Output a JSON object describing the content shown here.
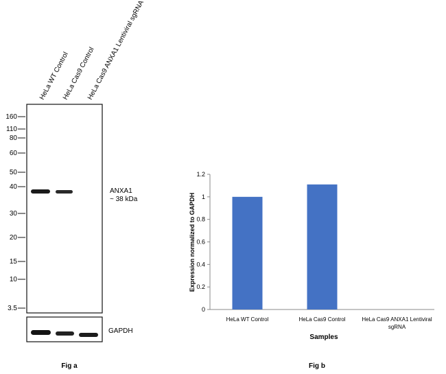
{
  "figure_a": {
    "lane_labels": [
      "HeLa WT Control",
      "HeLa Cas9 Control",
      "HeLa Cas9 ANXA1 Lentiviral sgRNA"
    ],
    "mw_markers": [
      "160",
      "110",
      "80",
      "60",
      "50",
      "40",
      "30",
      "20",
      "15",
      "10",
      "3.5"
    ],
    "target_label": "ANXA1",
    "target_size": "~ 38 kDa",
    "loading_control_label": "GAPDH",
    "caption": "Fig a"
  },
  "chart_data": {
    "type": "bar",
    "categories": [
      "HeLa WT Control",
      "HeLa Cas9 Control",
      "HeLa Cas9 ANXA1 Lentiviral sgRNA"
    ],
    "values": [
      1.0,
      1.11,
      0.0
    ],
    "xlabel": "Samples",
    "ylabel": "Expression normalized to GAPDH",
    "ylim": [
      0,
      1.2
    ],
    "yticks": [
      "0",
      "0.2",
      "0.4",
      "0.6",
      "0.8",
      "1",
      "1.2"
    ],
    "bar_color": "#4472c4",
    "grid": false
  },
  "figure_b": {
    "caption": "Fig b",
    "category_line1": [
      "HeLa WT Control",
      "HeLa Cas9 Control",
      "HeLa Cas9 ANXA1 Lentiviral"
    ],
    "category_line2": [
      "",
      "",
      "sgRNA"
    ]
  }
}
